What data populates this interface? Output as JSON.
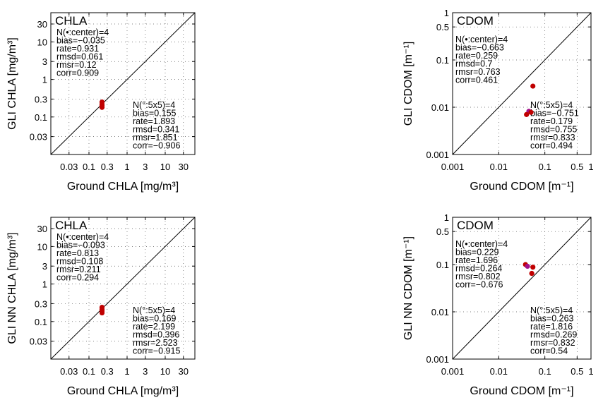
{
  "chart_data": [
    {
      "type": "scatter",
      "panel_title": "CHLA",
      "xlabel": "Ground CHLA [mg/m³]",
      "ylabel": "GLI CHLA [mg/m³]",
      "scale": "log",
      "xlim": [
        0.01,
        60
      ],
      "ylim": [
        0.01,
        60
      ],
      "xticks": [
        "0.03",
        "0.1",
        "0.3",
        "1",
        "3",
        "10",
        "30"
      ],
      "yticks": [
        "0.03",
        "0.1",
        "0.3",
        "1",
        "3",
        "10",
        "30"
      ],
      "grid": true,
      "one_to_one_line": true,
      "center_stats": [
        "N(•:center)=4",
        "bias=−0.035",
        "rate=0.931",
        "rmsd=0.061",
        "rmsr=0.12",
        "corr=0.909"
      ],
      "box_stats": [
        "N(°:5x5)=4",
        "bias=0.155",
        "rate=1.893",
        "rmsd=0.341",
        "rmsr=1.851",
        "corr=−0.906"
      ],
      "points": [
        {
          "x": 0.22,
          "y": 0.25,
          "color": "#c00000"
        },
        {
          "x": 0.22,
          "y": 0.22,
          "color": "#c00000"
        },
        {
          "x": 0.22,
          "y": 0.2,
          "color": "#c00000"
        },
        {
          "x": 0.22,
          "y": 0.18,
          "color": "#c00000"
        }
      ]
    },
    {
      "type": "scatter",
      "panel_title": "CDOM",
      "xlabel": "Ground CDOM [m⁻¹]",
      "ylabel": "GLI CDOM [m⁻¹]",
      "scale": "log",
      "xlim": [
        0.001,
        1
      ],
      "ylim": [
        0.001,
        1
      ],
      "xticks": [
        "0.001",
        "0.01",
        "0.1",
        "0.5",
        "1"
      ],
      "yticks": [
        "0.001",
        "0.01",
        "0.1",
        "0.5",
        "1"
      ],
      "grid": true,
      "one_to_one_line": true,
      "center_stats": [
        "N(•:center)=4",
        "bias=−0.663",
        "rate=0.259",
        "rmsd=0.7",
        "rmsr=0.763",
        "corr=0.461"
      ],
      "box_stats": [
        "N(°:5x5)=4",
        "bias=−0.751",
        "rate=0.179",
        "rmsd=0.755",
        "rmsr=0.833",
        "corr=0.494"
      ],
      "points": [
        {
          "x": 0.055,
          "y": 0.028,
          "color": "#c00000"
        },
        {
          "x": 0.045,
          "y": 0.0082,
          "color": "#a0108a"
        },
        {
          "x": 0.05,
          "y": 0.0078,
          "color": "#c00000"
        },
        {
          "x": 0.04,
          "y": 0.007,
          "color": "#c00000"
        }
      ]
    },
    {
      "type": "scatter",
      "panel_title": "CHLA",
      "xlabel": "Ground CHLA [mg/m³]",
      "ylabel": "GLI NN CHLA [mg/m³]",
      "scale": "log",
      "xlim": [
        0.01,
        60
      ],
      "ylim": [
        0.01,
        60
      ],
      "xticks": [
        "0.03",
        "0.1",
        "0.3",
        "1",
        "3",
        "10",
        "30"
      ],
      "yticks": [
        "0.03",
        "0.1",
        "0.3",
        "1",
        "3",
        "10",
        "30"
      ],
      "grid": true,
      "one_to_one_line": true,
      "center_stats": [
        "N(•:center)=4",
        "bias=−0.093",
        "rate=0.813",
        "rmsd=0.108",
        "rmsr=0.211",
        "corr=0.294"
      ],
      "box_stats": [
        "N(°:5x5)=4",
        "bias=0.169",
        "rate=2.199",
        "rmsd=0.396",
        "rmsr=2.523",
        "corr=−0.915"
      ],
      "points": [
        {
          "x": 0.22,
          "y": 0.24,
          "color": "#c00000"
        },
        {
          "x": 0.22,
          "y": 0.21,
          "color": "#c00000"
        },
        {
          "x": 0.22,
          "y": 0.19,
          "color": "#c00000"
        },
        {
          "x": 0.22,
          "y": 0.17,
          "color": "#c00000"
        }
      ]
    },
    {
      "type": "scatter",
      "panel_title": "CDOM",
      "xlabel": "Ground CDOM [m⁻¹]",
      "ylabel": "GLI NN CDOM [m⁻¹]",
      "scale": "log",
      "xlim": [
        0.001,
        1
      ],
      "ylim": [
        0.001,
        1
      ],
      "xticks": [
        "0.001",
        "0.01",
        "0.1",
        "0.5",
        "1"
      ],
      "yticks": [
        "0.001",
        "0.01",
        "0.1",
        "0.5",
        "1"
      ],
      "grid": true,
      "one_to_one_line": true,
      "center_stats": [
        "N(•:center)=4",
        "bias=0.229",
        "rate=1.696",
        "rmsd=0.264",
        "rmsr=0.802",
        "corr=−0.676"
      ],
      "box_stats": [
        "N(°:5x5)=4",
        "bias=0.263",
        "rate=1.816",
        "rmsd=0.269",
        "rmsr=0.832",
        "corr=0.54"
      ],
      "points": [
        {
          "x": 0.038,
          "y": 0.1,
          "color": "#c00000"
        },
        {
          "x": 0.042,
          "y": 0.092,
          "color": "#a0108a"
        },
        {
          "x": 0.055,
          "y": 0.088,
          "color": "#c00000"
        },
        {
          "x": 0.052,
          "y": 0.065,
          "color": "#c00000"
        }
      ]
    }
  ]
}
